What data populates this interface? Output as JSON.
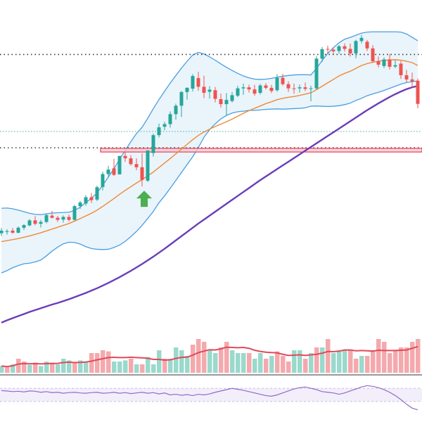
{
  "chart_data": [
    {
      "type": "candlestick",
      "panel": "price",
      "title": "",
      "xlabel": "",
      "ylabel": "",
      "ylim": [
        -35,
        80
      ],
      "grid": false,
      "legend": "none",
      "ohlc": [
        [
          2,
          4,
          1,
          3
        ],
        [
          2.5,
          3.5,
          1.5,
          2.8
        ],
        [
          3,
          4,
          1.8,
          2.2
        ],
        [
          2.2,
          4.6,
          2,
          4.1
        ],
        [
          4.1,
          5.5,
          3.2,
          5.1
        ],
        [
          5,
          7.4,
          4.6,
          6.9
        ],
        [
          6.9,
          8.5,
          5,
          5.6
        ],
        [
          5.6,
          7.1,
          4.2,
          6.3
        ],
        [
          6.3,
          9.3,
          5.8,
          8.9
        ],
        [
          8.7,
          10.5,
          7.6,
          7.9
        ],
        [
          7.9,
          8.6,
          6.3,
          7.1
        ],
        [
          7.2,
          8.8,
          6.1,
          8.2
        ],
        [
          8.2,
          9.1,
          6.5,
          7.1
        ],
        [
          7.1,
          12.8,
          6.8,
          12.3
        ],
        [
          12.3,
          14.3,
          11.2,
          13.7
        ],
        [
          13.3,
          16.5,
          12.5,
          15.7
        ],
        [
          15.7,
          17.3,
          13.5,
          14.6
        ],
        [
          14.8,
          20.1,
          14.2,
          19.5
        ],
        [
          19.6,
          25.4,
          18.3,
          24.5
        ],
        [
          24.5,
          27.6,
          23.3,
          26.2
        ],
        [
          26.7,
          30.3,
          23.8,
          24.2
        ],
        [
          24.4,
          31.4,
          24.4,
          31.4
        ],
        [
          31.4,
          32.7,
          29.2,
          30.5
        ],
        [
          30.5,
          31.7,
          27.7,
          28.3
        ],
        [
          28.3,
          30.5,
          26,
          27.1
        ],
        [
          27.1,
          32.4,
          19.8,
          22.3
        ],
        [
          22,
          33.5,
          21.5,
          33.5
        ],
        [
          32.5,
          39.9,
          31.2,
          39.3
        ],
        [
          39.3,
          43.7,
          38.4,
          42.3
        ],
        [
          42.5,
          44.4,
          41.2,
          43.5
        ],
        [
          43.5,
          48.3,
          42.2,
          47.3
        ],
        [
          47.3,
          51.3,
          45.2,
          50.5
        ],
        [
          50.5,
          56.1,
          46.2,
          55.7
        ],
        [
          55.7,
          57.5,
          52.8,
          57.3
        ],
        [
          57,
          62.5,
          55.9,
          61.8
        ],
        [
          61,
          63.4,
          56.2,
          57.7
        ],
        [
          57.7,
          61.9,
          53.4,
          55.4
        ],
        [
          55.8,
          57.9,
          53.2,
          56.6
        ],
        [
          56.4,
          57.6,
          51.8,
          53.1
        ],
        [
          53,
          55.1,
          49.8,
          51.1
        ],
        [
          51.1,
          55.3,
          46.8,
          52.7
        ],
        [
          52.3,
          55.7,
          51.7,
          54.5
        ],
        [
          54.3,
          58.1,
          53.8,
          57.1
        ],
        [
          57.1,
          58.9,
          54.7,
          57.5
        ],
        [
          57.5,
          58.5,
          55.5,
          56.7
        ],
        [
          56.7,
          58.4,
          54.3,
          55.1
        ],
        [
          55.4,
          58.8,
          54.8,
          58.2
        ],
        [
          58.2,
          59.1,
          56.7,
          57.3
        ],
        [
          57.3,
          58.4,
          55.3,
          56.1
        ],
        [
          56.4,
          62.5,
          55.8,
          61.1
        ],
        [
          61.1,
          62.6,
          58.1,
          58.7
        ],
        [
          58.7,
          59.8,
          55.8,
          57.1
        ],
        [
          57.1,
          58.9,
          55.1,
          56.9
        ],
        [
          57.1,
          58.5,
          55.5,
          57.5
        ],
        [
          57.5,
          59.3,
          56.1,
          56.9
        ],
        [
          56.9,
          58.1,
          52.2,
          57.1
        ],
        [
          57.1,
          69.3,
          56.6,
          68.4
        ],
        [
          68.4,
          72.8,
          67.1,
          72
        ],
        [
          72.1,
          73.3,
          70.1,
          71.9
        ],
        [
          71.8,
          72.7,
          70.2,
          71.2
        ],
        [
          71.3,
          73.6,
          70.2,
          73.1
        ],
        [
          73.1,
          74.2,
          71.1,
          72.1
        ],
        [
          72.1,
          74.1,
          69.2,
          70.4
        ],
        [
          70.4,
          75.6,
          68.5,
          75.1
        ],
        [
          75.1,
          77.4,
          74.2,
          76.3
        ],
        [
          74.8,
          75.5,
          71.3,
          72.3
        ],
        [
          72.3,
          73.5,
          66.9,
          67.4
        ],
        [
          67.4,
          69.2,
          65.1,
          66.1
        ],
        [
          65.6,
          68.8,
          64.8,
          68.1
        ],
        [
          68.1,
          70.2,
          64.3,
          65.3
        ],
        [
          65.4,
          67.8,
          64.8,
          65.9
        ],
        [
          66.5,
          67.5,
          60.7,
          62.1
        ],
        [
          62.1,
          64.1,
          59.3,
          60.5
        ],
        [
          60.5,
          63.1,
          57.4,
          59.8
        ],
        [
          60,
          60.8,
          49.5,
          51.2
        ]
      ],
      "sma_fast": [
        -1.2,
        -0.8,
        -0.4,
        0,
        0.5,
        1,
        1.6,
        2.2,
        2.9,
        3.6,
        4.3,
        5,
        5.7,
        6.6,
        7.6,
        8.6,
        9.6,
        10.8,
        12.2,
        13.7,
        15.2,
        16.8,
        18.3,
        19.7,
        21.1,
        22.4,
        23.8,
        25.3,
        27,
        28.7,
        30.4,
        32.2,
        34,
        35.8,
        37.6,
        39.2,
        40.5,
        41.6,
        42.6,
        43.5,
        44.4,
        45.4,
        46.5,
        47.6,
        48.6,
        49.5,
        50.4,
        51.3,
        52,
        52.8,
        53.3,
        53.7,
        54,
        54.4,
        54.9,
        55.4,
        56.6,
        57.9,
        59.2,
        60.5,
        61.8,
        62.8,
        63.6,
        64.7,
        65.8,
        66.5,
        67,
        67.4,
        67.7,
        67.9,
        68,
        67.8,
        67.4,
        66.9,
        65.8
      ],
      "sma_slow": [
        -32,
        -31.1,
        -30.3,
        -29.5,
        -28.7,
        -27.9,
        -27.2,
        -26.5,
        -25.8,
        -25.1,
        -24.5,
        -23.8,
        -23.1,
        -22.3,
        -21.5,
        -20.7,
        -19.8,
        -18.9,
        -17.9,
        -16.9,
        -15.8,
        -14.7,
        -13.5,
        -12.3,
        -11,
        -9.7,
        -8.3,
        -6.9,
        -5.4,
        -3.9,
        -2.3,
        -0.7,
        0.9,
        2.5,
        4.1,
        5.7,
        7.2,
        8.7,
        10.2,
        11.7,
        13.2,
        14.7,
        16.2,
        17.7,
        19.2,
        20.7,
        22.2,
        23.6,
        25,
        26.4,
        27.8,
        29.2,
        30.6,
        32,
        33.4,
        34.8,
        36.2,
        37.6,
        39,
        40.4,
        41.8,
        43.2,
        44.6,
        46,
        47.4,
        48.8,
        50.1,
        51.4,
        52.6,
        53.8,
        54.9,
        55.9,
        56.8,
        57.5,
        58
      ],
      "bb_upper": [
        11.5,
        11.6,
        11.3,
        10.8,
        10.2,
        9.6,
        9.2,
        9.1,
        9.4,
        9.7,
        9.8,
        9.9,
        10,
        10.7,
        11.9,
        13.7,
        15.3,
        17.4,
        20.2,
        23.4,
        26.5,
        30.1,
        33.5,
        36.8,
        39.9,
        42.3,
        45.7,
        49.4,
        52.8,
        56,
        59.1,
        62,
        64.8,
        67.4,
        69.8,
        70.8,
        70.2,
        69.1,
        67.8,
        66.4,
        65.1,
        63.9,
        62.8,
        61.8,
        61.1,
        60.6,
        60.5,
        60.6,
        60.9,
        61.3,
        61.7,
        62,
        62.2,
        62.3,
        62.3,
        62.2,
        64.7,
        67.7,
        70.4,
        72.6,
        74.4,
        75.8,
        76.5,
        77.3,
        78.1,
        78.5,
        78.6,
        78.6,
        78.6,
        78.6,
        78.6,
        78.5,
        77.8,
        76.5,
        75.2
      ],
      "bb_lower": [
        -13.1,
        -12.2,
        -11.1,
        -10.3,
        -9.6,
        -9.4,
        -8.9,
        -8.2,
        -6.6,
        -4.8,
        -3.3,
        -2,
        -1.4,
        -1.5,
        -2.1,
        -3.1,
        -3.8,
        -4.1,
        -4.2,
        -4.1,
        -3.4,
        -2.5,
        -1.1,
        0.7,
        2.7,
        5,
        7.6,
        10.3,
        13.6,
        16.2,
        19.1,
        22.1,
        25.1,
        28.1,
        31.1,
        34.6,
        38.5,
        41.4,
        43.6,
        45.5,
        46.8,
        47.7,
        48.2,
        48.4,
        48.7,
        48.7,
        48.9,
        49.1,
        49.2,
        49.3,
        49.2,
        49.3,
        49.4,
        49.5,
        49.7,
        50.3,
        50.4,
        50.3,
        50.2,
        50.3,
        50.5,
        50.9,
        51.5,
        52.5,
        53.3,
        54.3,
        55,
        55.6,
        56.3,
        57.1,
        57.9,
        58.7,
        59.3,
        59.6,
        59.9
      ],
      "reference_levels": [
        {
          "value": 70,
          "style": "dotted",
          "color": "#333333"
        },
        {
          "value": 34.5,
          "style": "dotted",
          "color": "#333333"
        },
        {
          "value": 40.7,
          "style": "dotted",
          "color": "#26a69a"
        }
      ],
      "zone": {
        "top": 34.3,
        "bottom": 32.9,
        "fill": "#f8c8cf",
        "border": "#e0344f"
      },
      "signal": {
        "type": "buy-arrow",
        "index": 25,
        "color": "#4caf50"
      },
      "colors": {
        "up": "#26a69a",
        "down": "#ef5350",
        "sma_fast": "#f08a35",
        "sma_slow": "#6a3db8",
        "bands": "#4a9fe0",
        "band_fill": "#eaf4fb"
      }
    },
    {
      "type": "bar",
      "panel": "volume",
      "title": "",
      "xlabel": "",
      "ylabel": "",
      "ylim": [
        0,
        100
      ],
      "values": [
        12,
        10,
        15,
        25,
        20,
        14,
        18,
        12,
        20,
        18,
        15,
        25,
        22,
        18,
        22,
        20,
        35,
        35,
        40,
        38,
        20,
        20,
        22,
        25,
        15,
        15,
        28,
        15,
        40,
        25,
        25,
        45,
        40,
        30,
        50,
        60,
        55,
        40,
        35,
        45,
        55,
        40,
        35,
        35,
        35,
        25,
        35,
        25,
        30,
        38,
        30,
        20,
        40,
        40,
        25,
        35,
        45,
        45,
        60,
        35,
        40,
        40,
        40,
        25,
        30,
        30,
        40,
        60,
        55,
        35,
        40,
        45,
        45,
        55,
        60
      ],
      "up_flags": [
        1,
        0,
        1,
        0,
        0,
        1,
        0,
        1,
        1,
        0,
        1,
        1,
        1,
        0,
        1,
        1,
        0,
        0,
        0,
        0,
        1,
        1,
        1,
        0,
        1,
        0,
        1,
        1,
        1,
        0,
        1,
        1,
        1,
        1,
        0,
        0,
        0,
        1,
        1,
        0,
        0,
        1,
        1,
        1,
        0,
        1,
        1,
        0,
        1,
        0,
        0,
        0,
        1,
        1,
        0,
        1,
        0,
        1,
        0,
        1,
        1,
        1,
        0,
        0,
        1,
        0,
        0,
        0,
        0,
        0,
        0,
        0,
        0,
        0,
        0
      ],
      "ma_value": 22,
      "colors": {
        "up": "#9ad9cc",
        "down": "#f4a9ad",
        "ma": "#e04a5a"
      }
    },
    {
      "type": "line",
      "panel": "oscillator",
      "title": "",
      "xlabel": "",
      "ylabel": "",
      "ylim": [
        0,
        100
      ],
      "values": [
        63,
        62,
        60,
        61,
        59,
        62,
        61,
        58,
        60,
        57,
        58,
        55,
        57,
        58,
        56,
        55,
        57,
        58,
        55,
        56,
        58,
        55,
        57,
        54,
        56,
        58,
        55,
        57,
        53,
        56,
        50,
        52,
        49,
        51,
        48,
        52,
        50,
        53,
        58,
        62,
        66,
        70,
        67,
        64,
        60,
        56,
        52,
        48,
        46,
        50,
        56,
        62,
        68,
        72,
        74,
        70,
        66,
        60,
        58,
        56,
        52,
        56,
        62,
        68,
        74,
        78,
        76,
        72,
        66,
        58,
        48,
        36,
        22,
        10,
        5
      ],
      "band": [
        30,
        70
      ],
      "colors": {
        "line": "#8e6cc9",
        "band_fill": "#f3effa",
        "band_border": "#b9a8e0"
      }
    }
  ]
}
